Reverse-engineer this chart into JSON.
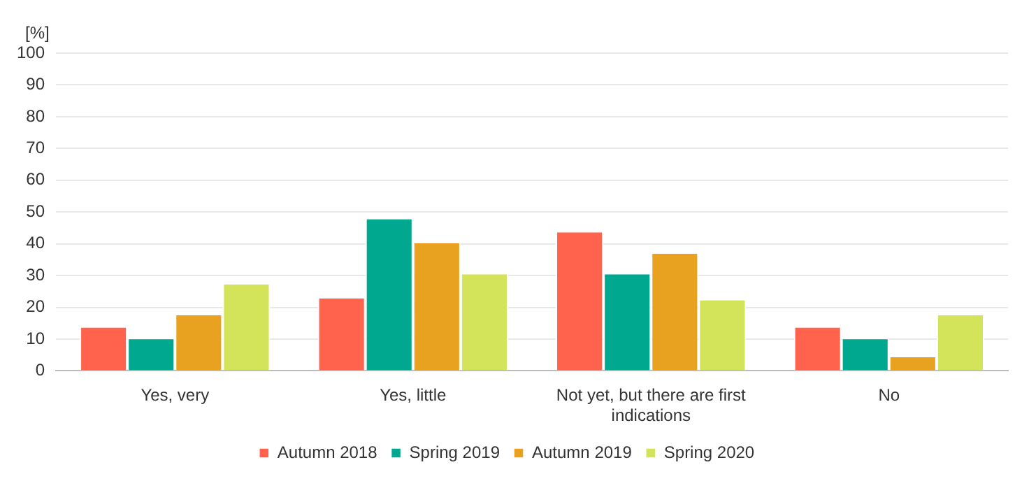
{
  "chart_data": {
    "type": "bar",
    "ylabel": "[%]",
    "categories": [
      "Yes, very",
      "Yes, little",
      "Not yet, but there are first indications",
      "No"
    ],
    "series": [
      {
        "name": "Autumn 2018",
        "color": "#ff634d",
        "values": [
          14,
          23.2,
          44,
          14
        ]
      },
      {
        "name": "Spring 2019",
        "color": "#00a88f",
        "values": [
          10.4,
          48.1,
          30.8,
          10.4
        ]
      },
      {
        "name": "Autumn 2019",
        "color": "#e9a21f",
        "values": [
          17.9,
          40.6,
          37.3,
          4.7
        ]
      },
      {
        "name": "Spring 2020",
        "color": "#d4e45a",
        "values": [
          27.6,
          30.8,
          22.6,
          17.9
        ]
      }
    ],
    "ylim": [
      0,
      100
    ],
    "yticks": [
      0,
      10,
      20,
      30,
      40,
      50,
      60,
      70,
      80,
      90,
      100
    ],
    "grid": "y",
    "legend": "bottom"
  }
}
